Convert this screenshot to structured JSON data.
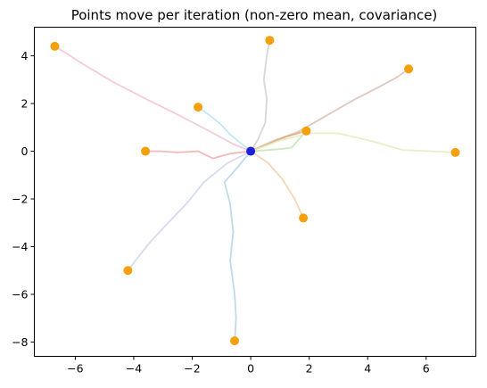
{
  "chart_data": {
    "type": "scatter",
    "title": "Points move per iteration (non-zero mean, covariance)",
    "xlabel": "",
    "ylabel": "",
    "xlim": [
      -7.4,
      7.7
    ],
    "ylim": [
      -8.6,
      5.2
    ],
    "xticks": [
      -6,
      -4,
      -2,
      0,
      2,
      4,
      6
    ],
    "yticks": [
      -8,
      -6,
      -4,
      -2,
      0,
      2,
      4
    ],
    "tick_labels_x": [
      "−6",
      "−4",
      "−2",
      "0",
      "2",
      "4",
      "6"
    ],
    "tick_labels_y": [
      "−8",
      "−6",
      "−4",
      "−2",
      "0",
      "2",
      "4"
    ],
    "grid": false,
    "legend": "none",
    "center": {
      "x": 0.0,
      "y": 0.0,
      "color": "#1f1fd8"
    },
    "endpoint_color": "#f5a00a",
    "trajectories": [
      {
        "color": "#f2b8cf",
        "path": [
          [
            0,
            0
          ],
          [
            -0.6,
            0.3
          ],
          [
            -1.5,
            0.9
          ],
          [
            -2.6,
            1.6
          ],
          [
            -3.6,
            2.2
          ],
          [
            -4.7,
            2.9
          ],
          [
            -5.8,
            3.7
          ],
          [
            -6.3,
            4.1
          ],
          [
            -6.7,
            4.4
          ]
        ]
      },
      {
        "color": "#aee2ee",
        "path": [
          [
            0,
            0
          ],
          [
            -0.3,
            0.3
          ],
          [
            -0.7,
            0.7
          ],
          [
            -1.0,
            1.1
          ],
          [
            -1.4,
            1.5
          ],
          [
            -1.8,
            1.85
          ]
        ]
      },
      {
        "color": "#c9c9c9",
        "path": [
          [
            0,
            0
          ],
          [
            0.25,
            0.5
          ],
          [
            0.5,
            1.2
          ],
          [
            0.55,
            2.2
          ],
          [
            0.45,
            3.0
          ],
          [
            0.55,
            4.0
          ],
          [
            0.65,
            4.65
          ]
        ]
      },
      {
        "color": "#d6b4a8",
        "path": [
          [
            0,
            0
          ],
          [
            0.8,
            0.45
          ],
          [
            1.6,
            0.8
          ],
          [
            2.6,
            1.5
          ],
          [
            3.6,
            2.2
          ],
          [
            4.4,
            2.7
          ],
          [
            5.0,
            3.1
          ],
          [
            5.4,
            3.45
          ]
        ]
      },
      {
        "color": "#d9a86a",
        "path": [
          [
            0,
            0
          ],
          [
            0.6,
            0.3
          ],
          [
            1.2,
            0.6
          ],
          [
            1.9,
            0.85
          ]
        ]
      },
      {
        "color": "#b6e3a8",
        "path": [
          [
            0,
            0
          ],
          [
            0.6,
            0.05
          ],
          [
            1.1,
            0.1
          ],
          [
            1.4,
            0.15
          ],
          [
            1.9,
            0.85
          ]
        ]
      },
      {
        "color": "#e2e8b8",
        "path": [
          [
            0,
            0
          ],
          [
            1.0,
            0.45
          ],
          [
            2.0,
            0.75
          ],
          [
            3.0,
            0.75
          ],
          [
            4.2,
            0.4
          ],
          [
            5.2,
            0.05
          ],
          [
            6.2,
            0.0
          ],
          [
            7.0,
            -0.05
          ]
        ]
      },
      {
        "color": "#f0a0a0",
        "path": [
          [
            0,
            0
          ],
          [
            -0.7,
            -0.1
          ],
          [
            -1.3,
            -0.3
          ],
          [
            -1.8,
            0.0
          ],
          [
            -2.5,
            -0.05
          ],
          [
            -3.1,
            0.0
          ],
          [
            -3.6,
            0.0
          ]
        ]
      },
      {
        "color": "#c9ccea",
        "path": [
          [
            0,
            0
          ],
          [
            -0.8,
            -0.5
          ],
          [
            -1.6,
            -1.3
          ],
          [
            -2.2,
            -2.2
          ],
          [
            -2.9,
            -3.1
          ],
          [
            -3.5,
            -3.9
          ],
          [
            -4.2,
            -5.0
          ]
        ]
      },
      {
        "color": "#a9cde6",
        "path": [
          [
            0,
            0
          ],
          [
            -0.4,
            -0.6
          ],
          [
            -0.9,
            -1.3
          ],
          [
            -0.7,
            -2.2
          ],
          [
            -0.6,
            -3.4
          ],
          [
            -0.7,
            -4.6
          ],
          [
            -0.55,
            -6.0
          ],
          [
            -0.5,
            -7.0
          ],
          [
            -0.55,
            -7.95
          ]
        ]
      },
      {
        "color": "#f5c79e",
        "path": [
          [
            0,
            0
          ],
          [
            0.6,
            -0.5
          ],
          [
            1.1,
            -1.2
          ],
          [
            1.5,
            -2.0
          ],
          [
            1.8,
            -2.8
          ]
        ]
      }
    ],
    "endpoints": [
      [
        -6.7,
        4.4
      ],
      [
        -1.8,
        1.85
      ],
      [
        0.65,
        4.65
      ],
      [
        5.4,
        3.45
      ],
      [
        1.9,
        0.85
      ],
      [
        7.0,
        -0.05
      ],
      [
        -3.6,
        0.0
      ],
      [
        -4.2,
        -5.0
      ],
      [
        -0.55,
        -7.95
      ],
      [
        1.8,
        -2.8
      ]
    ]
  }
}
